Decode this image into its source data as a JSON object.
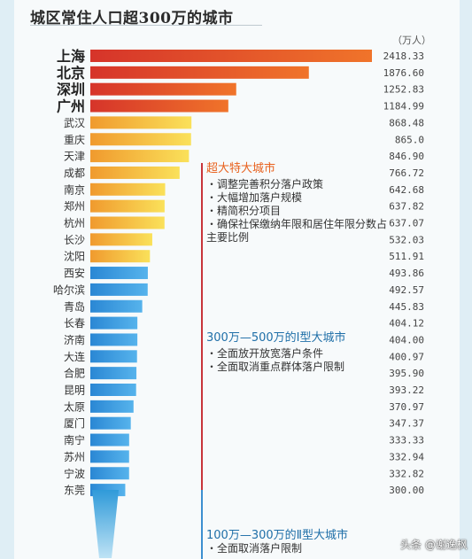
{
  "title": "城区常住人口超300万的城市",
  "unit": "（万人）",
  "watermark": "头条 @谢逸枫",
  "colors": {
    "tier1": "#e85a1e",
    "tier2": "#f3a431",
    "tier3": "#3d9bdc",
    "annot_orange": "#e8611e",
    "annot_blue": "#1f6fa8",
    "divider_red": "#c8343a",
    "divider_blue": "#3c8fd0"
  },
  "chart_data": {
    "type": "bar",
    "orientation": "horizontal",
    "categories": [
      "上海",
      "北京",
      "深圳",
      "广州",
      "武汉",
      "重庆",
      "天津",
      "成都",
      "南京",
      "郑州",
      "杭州",
      "长沙",
      "沈阳",
      "西安",
      "哈尔滨",
      "青岛",
      "长春",
      "济南",
      "大连",
      "合肥",
      "昆明",
      "太原",
      "厦门",
      "南宁",
      "苏州",
      "宁波",
      "东莞"
    ],
    "values": [
      2418.33,
      1876.6,
      1252.83,
      1184.99,
      868.48,
      865.0,
      846.9,
      766.72,
      642.68,
      637.82,
      637.07,
      532.03,
      511.91,
      493.86,
      492.57,
      445.83,
      404.12,
      404.0,
      400.97,
      395.9,
      393.22,
      370.97,
      347.37,
      333.33,
      332.94,
      332.82,
      300.0
    ],
    "value_labels": [
      "2418.33",
      "1876.60",
      "1252.83",
      "1184.99",
      "868.48",
      "865.0",
      "846.90",
      "766.72",
      "642.68",
      "637.82",
      "637.07",
      "532.03",
      "511.91",
      "493.86",
      "492.57",
      "445.83",
      "404.12",
      "404.00",
      "400.97",
      "395.90",
      "393.22",
      "370.97",
      "347.37",
      "333.33",
      "332.94",
      "332.82",
      "300.00"
    ],
    "tiers": [
      "tier1",
      "tier1",
      "tier1",
      "tier1",
      "tier2",
      "tier2",
      "tier2",
      "tier2",
      "tier2",
      "tier2",
      "tier2",
      "tier2",
      "tier2",
      "tier3",
      "tier3",
      "tier3",
      "tier3",
      "tier3",
      "tier3",
      "tier3",
      "tier3",
      "tier3",
      "tier3",
      "tier3",
      "tier3",
      "tier3",
      "tier3"
    ],
    "unit": "（万人）"
  },
  "annotations": [
    {
      "heading": "超大特大城市",
      "items": [
        "调整完善积分落户政策",
        "大幅增加落户规模",
        "精简积分项目",
        "确保社保缴纳年限和居住年限分数占主要比例"
      ]
    },
    {
      "heading": "300万—500万的Ⅰ型大城市",
      "items": [
        "全面放开放宽落户条件",
        "全面取消重点群体落户限制"
      ]
    },
    {
      "heading": "100万—300万的Ⅱ型大城市",
      "items": [
        "全面取消落户限制"
      ]
    }
  ]
}
